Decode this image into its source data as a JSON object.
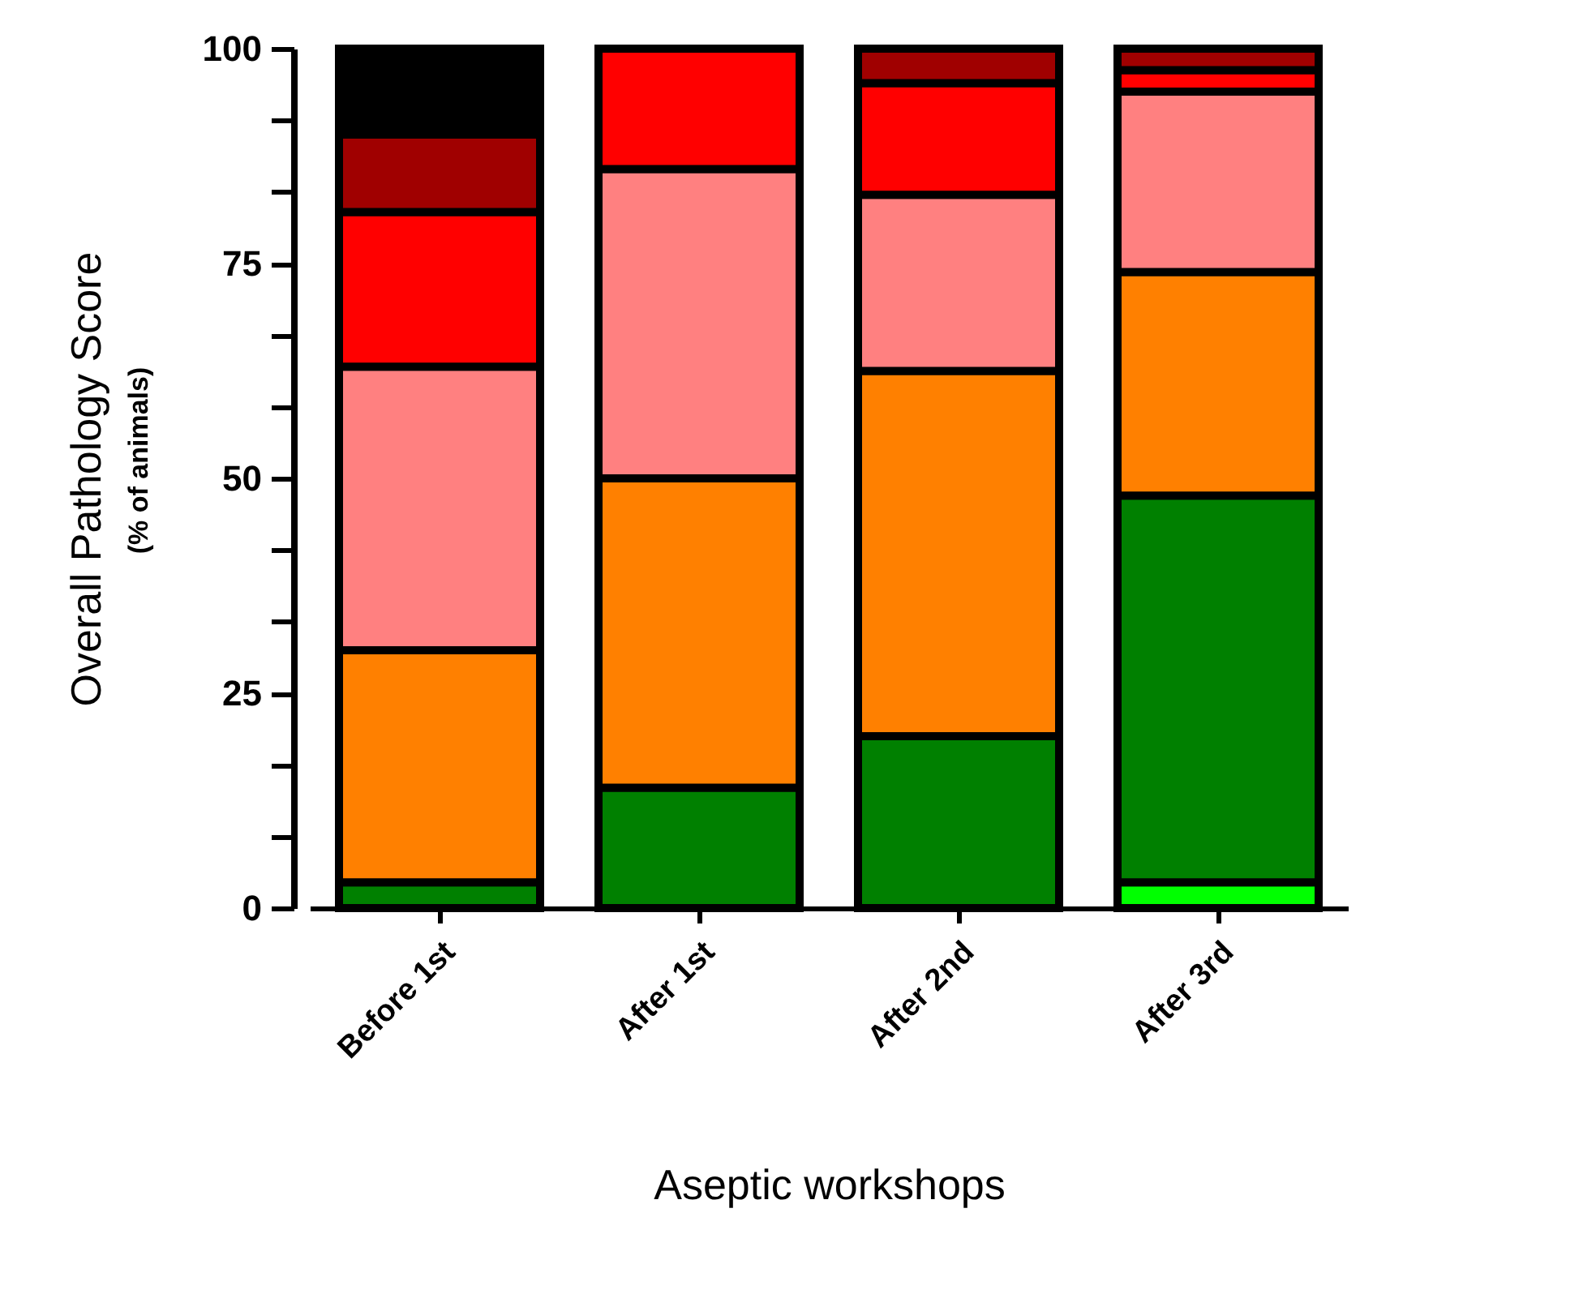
{
  "chart_data": {
    "type": "bar",
    "stacked": true,
    "xlabel": "Aseptic workshops",
    "ylabel": "Overall Pathology Score",
    "annotations": [
      "(% of animals)"
    ],
    "categories": [
      "Before 1st",
      "After 1st",
      "After 2nd",
      "After 3rd"
    ],
    "series": [
      {
        "color": "#00ff00",
        "values": [
          null,
          null,
          null,
          3
        ]
      },
      {
        "color": "#008000",
        "values": [
          3,
          14,
          20,
          45
        ]
      },
      {
        "color": "#ff8000",
        "values": [
          27,
          36,
          42.5,
          26
        ]
      },
      {
        "color": "#ff8080",
        "values": [
          33,
          36,
          20.5,
          21
        ]
      },
      {
        "color": "#ff0000",
        "values": [
          18,
          14,
          13,
          2.5
        ]
      },
      {
        "color": "#a00000",
        "values": [
          9,
          null,
          4,
          2.5
        ]
      },
      {
        "color": "#000000",
        "values": [
          10,
          null,
          null,
          null
        ]
      }
    ],
    "ylim": [
      0,
      100
    ],
    "yticks": [
      0,
      {
        "value": 8.33,
        "label": null
      },
      {
        "value": 16.67,
        "label": null
      },
      25,
      {
        "value": 33.33,
        "label": null
      },
      {
        "value": 41.67,
        "label": null
      },
      50,
      {
        "value": 58.33,
        "label": null
      },
      {
        "value": 66.67,
        "label": null
      },
      75,
      {
        "value": 83.33,
        "label": null
      },
      {
        "value": 91.67,
        "label": null
      },
      100
    ],
    "grid": false,
    "legend": false
  }
}
